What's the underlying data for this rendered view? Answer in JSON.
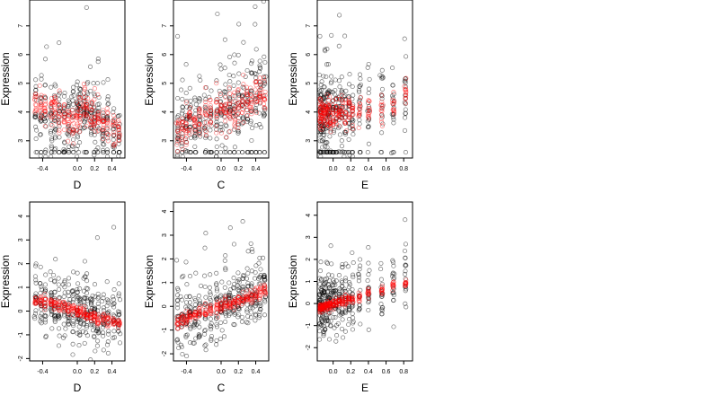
{
  "colors": {
    "observed": "#000000",
    "fitted": "#ff0000",
    "background": "#ffffff"
  },
  "chart_data": [
    {
      "type": "scatter",
      "panel": "top-left",
      "xlabel": "D",
      "ylabel": "Expression",
      "xlim": [
        -0.55,
        0.55
      ],
      "ylim": [
        2.4,
        7.9
      ],
      "xticks": [
        -0.4,
        0.0,
        0.2,
        0.4
      ],
      "xtick_labels": [
        "-0.4",
        "0.0",
        "0.2",
        "0.4"
      ],
      "yticks": [
        3,
        4,
        5,
        6,
        7
      ],
      "ytick_labels": [
        "3",
        "4",
        "5",
        "6",
        "7"
      ],
      "x_groups": [
        -0.48,
        -0.42,
        -0.37,
        -0.3,
        -0.26,
        -0.21,
        -0.15,
        -0.1,
        -0.05,
        0.0,
        0.03,
        0.08,
        0.11,
        0.16,
        0.2,
        0.24,
        0.3,
        0.35,
        0.42,
        0.48
      ],
      "fitted_center": [
        4.4,
        4.3,
        4.2,
        4.0,
        4.1,
        3.8,
        3.9,
        3.7,
        3.6,
        3.9,
        4.0,
        4.3,
        4.2,
        4.0,
        3.8,
        3.8,
        3.5,
        3.6,
        3.4,
        3.3
      ],
      "observed_center": [
        4.0,
        4.0,
        4.0,
        3.9,
        3.9,
        3.8,
        3.8,
        3.7,
        3.7,
        3.8,
        3.9,
        4.0,
        4.0,
        3.9,
        3.8,
        3.7,
        3.6,
        3.6,
        3.5,
        3.4
      ],
      "observed_spread": 1.1,
      "fitted_spread": 0.6,
      "floor": 2.6
    },
    {
      "type": "scatter",
      "panel": "top-middle",
      "xlabel": "C",
      "ylabel": "Expression",
      "xlim": [
        -0.55,
        0.55
      ],
      "ylim": [
        2.4,
        7.9
      ],
      "xticks": [
        -0.4,
        0.0,
        0.2,
        0.4
      ],
      "xtick_labels": [
        "-0.4",
        "0.0",
        "0.2",
        "0.4"
      ],
      "yticks": [
        3,
        4,
        5,
        6,
        7
      ],
      "ytick_labels": [
        "3",
        "4",
        "5",
        "6",
        "7"
      ],
      "x_groups": [
        -0.5,
        -0.45,
        -0.4,
        -0.36,
        -0.3,
        -0.25,
        -0.18,
        -0.12,
        -0.05,
        0.0,
        0.05,
        0.1,
        0.15,
        0.2,
        0.25,
        0.3,
        0.35,
        0.4,
        0.45,
        0.5
      ],
      "fitted_center": [
        3.3,
        3.4,
        3.6,
        3.7,
        3.8,
        3.9,
        3.9,
        4.0,
        3.9,
        4.0,
        4.0,
        4.1,
        4.1,
        4.2,
        4.3,
        4.4,
        4.5,
        4.6,
        4.7,
        4.6
      ],
      "observed_center": [
        3.3,
        3.4,
        3.5,
        3.6,
        3.7,
        3.8,
        3.8,
        3.9,
        3.9,
        3.9,
        4.0,
        4.0,
        4.1,
        4.2,
        4.3,
        4.4,
        4.5,
        4.5,
        4.6,
        4.6
      ],
      "observed_spread": 1.1,
      "fitted_spread": 0.6,
      "floor": 2.6
    },
    {
      "type": "scatter",
      "panel": "top-right",
      "xlabel": "E",
      "ylabel": "Expression",
      "xlim": [
        -0.18,
        0.9
      ],
      "ylim": [
        2.4,
        7.9
      ],
      "xticks": [
        0.0,
        0.2,
        0.4,
        0.6,
        0.8
      ],
      "xtick_labels": [
        "0.0",
        "0.2",
        "0.4",
        "0.6",
        "0.8"
      ],
      "yticks": [
        3,
        4,
        5,
        6,
        7
      ],
      "ytick_labels": [
        "3",
        "4",
        "5",
        "6",
        "7"
      ],
      "x_groups": [
        -0.15,
        -0.14,
        -0.13,
        -0.11,
        -0.09,
        -0.07,
        -0.05,
        -0.03,
        0.0,
        0.03,
        0.07,
        0.1,
        0.14,
        0.18,
        0.22,
        0.3,
        0.4,
        0.55,
        0.68,
        0.82
      ],
      "fitted_center": [
        3.9,
        3.9,
        4.0,
        3.9,
        4.0,
        3.9,
        4.0,
        3.8,
        3.9,
        4.0,
        3.9,
        4.1,
        3.9,
        4.0,
        3.9,
        4.0,
        4.2,
        4.2,
        4.4,
        4.6
      ],
      "observed_center": [
        3.8,
        3.8,
        3.9,
        3.9,
        3.9,
        3.9,
        3.9,
        3.8,
        3.9,
        3.9,
        3.9,
        4.0,
        3.9,
        3.9,
        3.9,
        4.0,
        4.1,
        4.2,
        4.4,
        4.5
      ],
      "observed_spread": 1.2,
      "fitted_spread": 0.5,
      "floor": 2.6
    },
    {
      "type": "scatter",
      "panel": "bottom-left",
      "xlabel": "D",
      "ylabel": "Expression",
      "xlim": [
        -0.55,
        0.55
      ],
      "ylim": [
        -2.1,
        4.6
      ],
      "xticks": [
        -0.4,
        0.0,
        0.2,
        0.4
      ],
      "xtick_labels": [
        "-0.4",
        "0.0",
        "0.2",
        "0.4"
      ],
      "yticks": [
        -2,
        -1,
        0,
        1,
        2,
        3,
        4
      ],
      "ytick_labels": [
        "-2",
        "-1",
        "0",
        "1",
        "2",
        "3",
        "4"
      ],
      "x_groups": [
        -0.48,
        -0.42,
        -0.37,
        -0.3,
        -0.26,
        -0.21,
        -0.15,
        -0.1,
        -0.05,
        0.0,
        0.03,
        0.08,
        0.11,
        0.16,
        0.2,
        0.24,
        0.3,
        0.35,
        0.42,
        0.48
      ],
      "fitted_center": [
        0.5,
        0.45,
        0.4,
        0.3,
        0.25,
        0.2,
        0.15,
        0.1,
        0.05,
        0.0,
        -0.05,
        -0.1,
        -0.15,
        -0.2,
        -0.25,
        -0.3,
        -0.35,
        -0.4,
        -0.45,
        -0.5
      ],
      "observed_center": [
        0.4,
        0.35,
        0.3,
        0.25,
        0.2,
        0.15,
        0.1,
        0.05,
        0.0,
        0.0,
        -0.05,
        -0.1,
        -0.1,
        -0.15,
        -0.2,
        -0.25,
        -0.3,
        -0.35,
        -0.4,
        -0.45
      ],
      "observed_spread": 1.2,
      "fitted_spread": 0.22
    },
    {
      "type": "scatter",
      "panel": "bottom-middle",
      "xlabel": "C",
      "ylabel": "Expression",
      "xlim": [
        -0.55,
        0.55
      ],
      "ylim": [
        -2.3,
        4.4
      ],
      "xticks": [
        -0.4,
        0.0,
        0.2,
        0.4
      ],
      "xtick_labels": [
        "-0.4",
        "0.0",
        "0.2",
        "0.4"
      ],
      "yticks": [
        -2,
        -1,
        0,
        1,
        2,
        3,
        4
      ],
      "ytick_labels": [
        "-2",
        "-1",
        "0",
        "1",
        "2",
        "3",
        "4"
      ],
      "x_groups": [
        -0.5,
        -0.45,
        -0.4,
        -0.36,
        -0.3,
        -0.25,
        -0.18,
        -0.12,
        -0.05,
        0.0,
        0.05,
        0.1,
        0.15,
        0.2,
        0.25,
        0.3,
        0.35,
        0.4,
        0.45,
        0.5
      ],
      "fitted_center": [
        -0.65,
        -0.6,
        -0.5,
        -0.45,
        -0.4,
        -0.3,
        -0.25,
        -0.15,
        -0.1,
        0.0,
        0.05,
        0.1,
        0.15,
        0.2,
        0.3,
        0.35,
        0.4,
        0.5,
        0.55,
        0.65
      ],
      "observed_center": [
        -0.6,
        -0.55,
        -0.5,
        -0.4,
        -0.35,
        -0.3,
        -0.2,
        -0.15,
        -0.1,
        0.0,
        0.05,
        0.1,
        0.15,
        0.2,
        0.25,
        0.3,
        0.4,
        0.45,
        0.5,
        0.6
      ],
      "observed_spread": 1.2,
      "fitted_spread": 0.25
    },
    {
      "type": "scatter",
      "panel": "bottom-right",
      "xlabel": "E",
      "ylabel": "Expression",
      "xlim": [
        -0.18,
        0.9
      ],
      "ylim": [
        -2.6,
        4.6
      ],
      "xticks": [
        0.0,
        0.2,
        0.4,
        0.6,
        0.8
      ],
      "xtick_labels": [
        "0.0",
        "0.2",
        "0.4",
        "0.6",
        "0.8"
      ],
      "yticks": [
        -2,
        -1,
        0,
        1,
        2,
        3,
        4
      ],
      "ytick_labels": [
        "-2",
        "-1",
        "0",
        "1",
        "2",
        "3",
        "4"
      ],
      "x_groups": [
        -0.15,
        -0.14,
        -0.13,
        -0.11,
        -0.09,
        -0.07,
        -0.05,
        -0.03,
        0.0,
        0.03,
        0.07,
        0.1,
        0.14,
        0.18,
        0.22,
        0.3,
        0.4,
        0.55,
        0.68,
        0.82
      ],
      "fitted_center": [
        -0.25,
        -0.2,
        -0.2,
        -0.15,
        -0.15,
        -0.1,
        -0.1,
        -0.05,
        0.0,
        0.05,
        0.05,
        0.1,
        0.1,
        0.15,
        0.2,
        0.3,
        0.45,
        0.6,
        0.8,
        0.95
      ],
      "observed_center": [
        -0.2,
        -0.2,
        -0.15,
        -0.15,
        -0.1,
        -0.1,
        -0.05,
        -0.05,
        0.0,
        0.0,
        0.05,
        0.1,
        0.1,
        0.15,
        0.2,
        0.3,
        0.4,
        0.6,
        0.75,
        0.9
      ],
      "observed_spread": 1.2,
      "fitted_spread": 0.2
    }
  ]
}
